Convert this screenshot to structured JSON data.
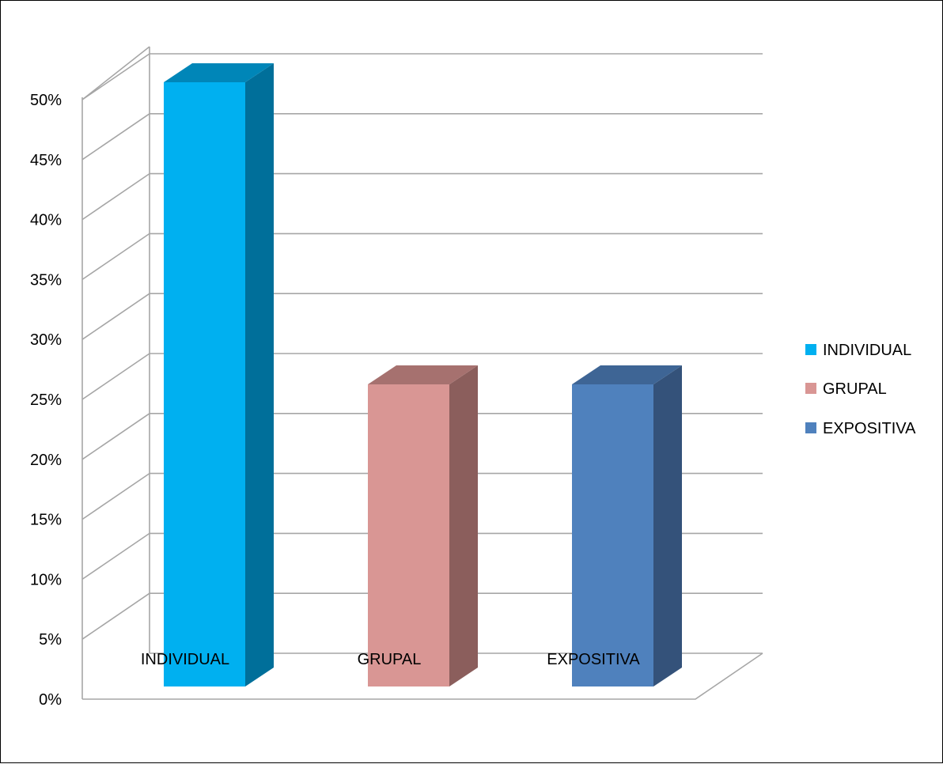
{
  "chart_data": {
    "type": "bar",
    "style": "3d-clustered-column",
    "title": "",
    "xlabel": "",
    "ylabel": "",
    "categories": [
      "INDIVIDUAL",
      "GRUPAL",
      "EXPOSITIVA"
    ],
    "series": [
      {
        "name": "INDIVIDUAL",
        "values": [
          50,
          null,
          null
        ],
        "color": "#00B0F0",
        "side_color": "#006F9A",
        "top_color": "#0086B8"
      },
      {
        "name": "GRUPAL",
        "values": [
          null,
          25,
          null
        ],
        "color": "#D99694",
        "side_color": "#8B5E5C",
        "top_color": "#A6716F"
      },
      {
        "name": "EXPOSITIVA",
        "values": [
          null,
          null,
          25
        ],
        "color": "#4F81BD",
        "side_color": "#34527A",
        "top_color": "#3E6595"
      }
    ],
    "ylim": [
      0,
      50
    ],
    "yticks": [
      "0%",
      "5%",
      "10%",
      "15%",
      "20%",
      "25%",
      "30%",
      "35%",
      "40%",
      "45%",
      "50%"
    ],
    "grid": true,
    "legend_position": "right"
  }
}
